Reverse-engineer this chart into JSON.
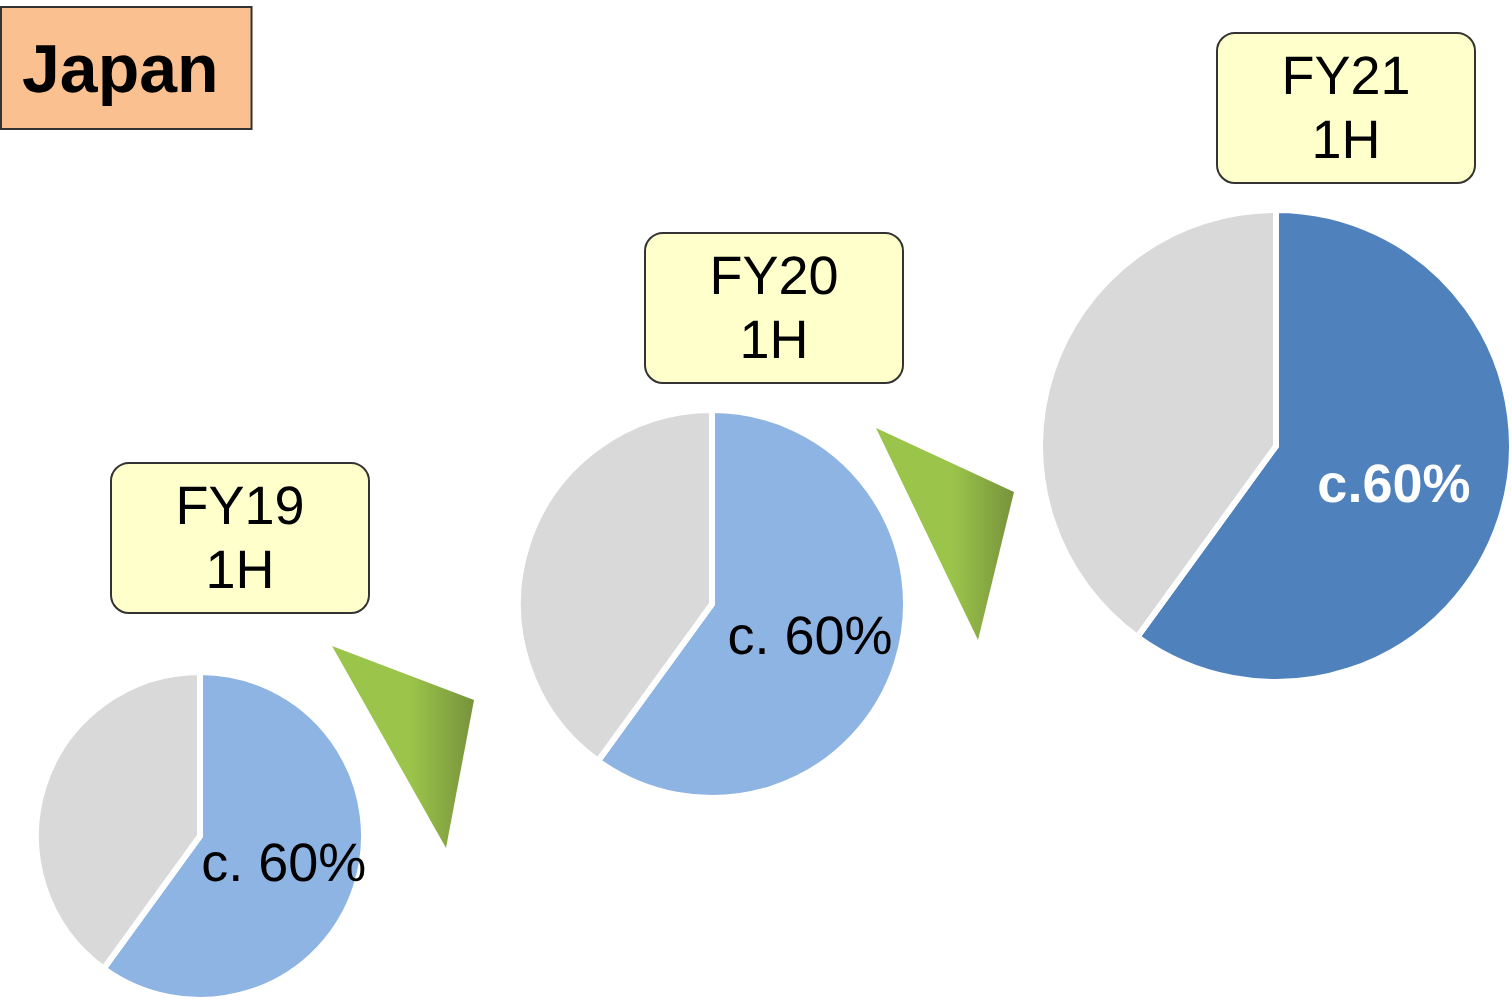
{
  "chart_data": [
    {
      "type": "pie",
      "title": "FY19\n1H",
      "annotations": [
        "Japan"
      ],
      "categories": [
        null,
        null
      ],
      "values": [
        60,
        40
      ],
      "colors": [
        "#8eb4e3",
        "#d9d9d9"
      ],
      "value_labels": [
        "c. 60%",
        null
      ]
    },
    {
      "type": "pie",
      "title": "FY20\n1H",
      "categories": [
        null,
        null
      ],
      "values": [
        60,
        40
      ],
      "colors": [
        "#8eb4e3",
        "#d9d9d9"
      ],
      "value_labels": [
        "c. 60%",
        null
      ]
    },
    {
      "type": "pie",
      "title": "FY21\n1H",
      "categories": [
        null,
        null
      ],
      "values": [
        60,
        40
      ],
      "colors": [
        "#4f81bd",
        "#d9d9d9"
      ],
      "value_labels": [
        "c.60%",
        null
      ]
    }
  ]
}
